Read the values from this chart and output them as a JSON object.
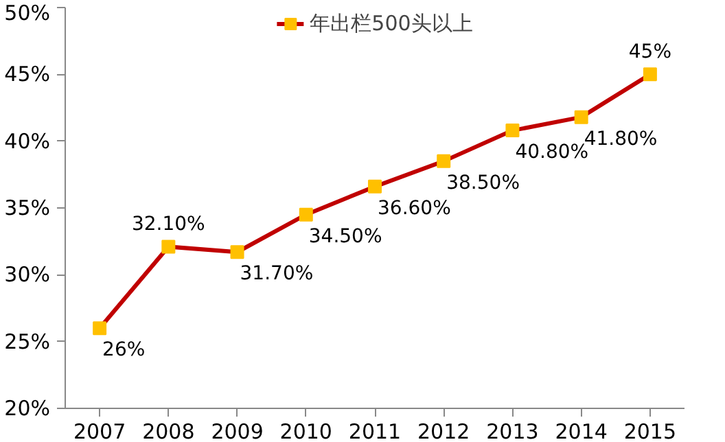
{
  "chart_data": {
    "type": "line",
    "categories": [
      "2007",
      "2008",
      "2009",
      "2010",
      "2011",
      "2012",
      "2013",
      "2014",
      "2015"
    ],
    "series": [
      {
        "name": "年出栏500头以上",
        "color": "#c00000",
        "colors": [
          "#ffc000",
          "#ffc000",
          "#ffc000",
          "#ffc000",
          "#ffc000",
          "#ffc000",
          "#ffc000",
          "#ffc000",
          "#ffc000"
        ],
        "values": [
          26,
          32.1,
          31.7,
          34.5,
          36.6,
          38.5,
          40.8,
          41.8,
          45
        ],
        "value_labels": [
          "26%",
          "32.10%",
          "31.70%",
          "34.50%",
          "36.60%",
          "38.50%",
          "40.80%",
          "41.80%",
          "45%"
        ]
      }
    ],
    "ylim": [
      20,
      50
    ],
    "yticks": [
      {
        "value": 20,
        "label": "20%"
      },
      {
        "value": 25,
        "label": "25%"
      },
      {
        "value": 30,
        "label": "30%"
      },
      {
        "value": 35,
        "label": "35%"
      },
      {
        "value": 40,
        "label": "40%"
      },
      {
        "value": 45,
        "label": "45%"
      },
      {
        "value": 50,
        "label": "50%"
      }
    ],
    "marker": "square",
    "line_style": "solid",
    "grid": false,
    "legend": "top"
  }
}
